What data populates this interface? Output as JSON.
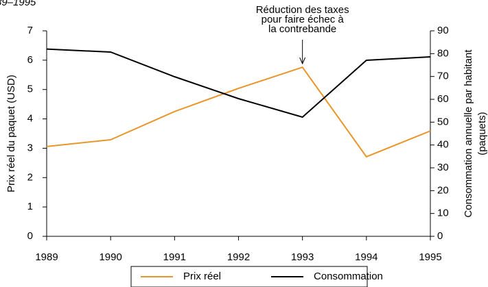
{
  "chart_data": {
    "type": "line",
    "title": "89–1995",
    "x": [
      1989,
      1990,
      1991,
      1992,
      1993,
      1994,
      1995
    ],
    "xlim": [
      1989,
      1995
    ],
    "xticks": [
      1989,
      1990,
      1991,
      1992,
      1993,
      1994,
      1995
    ],
    "ylabel": "Prix réel du paquet (USD)",
    "y2label": [
      "Consommation annuelle par habitant",
      "(paquets)"
    ],
    "ylim": [
      0,
      7
    ],
    "yticks": [
      0,
      1,
      2,
      3,
      4,
      5,
      6,
      7
    ],
    "y2lim": [
      0,
      90
    ],
    "y2ticks": [
      0,
      10,
      20,
      30,
      40,
      50,
      60,
      70,
      80,
      90
    ],
    "annotation": {
      "lines": [
        "Réduction des taxes",
        "pour faire échec à",
        "la contrebande"
      ],
      "x": 1993
    },
    "series": [
      {
        "name": "Prix réel",
        "color": "#e8962a",
        "values": [
          3.06,
          3.29,
          4.25,
          5.04,
          5.76,
          2.71,
          3.59
        ]
      },
      {
        "name": "Consommation",
        "color": "#000000",
        "axis": "y2",
        "values": [
          82,
          80.7,
          69.9,
          60.3,
          52.2,
          77.1,
          78.6
        ]
      }
    ],
    "legend": "bottom"
  }
}
